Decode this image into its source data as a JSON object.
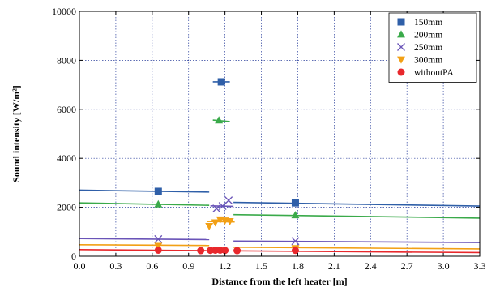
{
  "chart_data": {
    "type": "scatter",
    "xlabel": "Distance from the left heater [m]",
    "ylabel": "Sound intensity [W/m²]",
    "xlim": [
      0.0,
      3.3
    ],
    "ylim": [
      0,
      10000
    ],
    "xticks": [
      0.0,
      0.3,
      0.6,
      0.9,
      1.2,
      1.5,
      1.8,
      2.1,
      2.4,
      2.7,
      3.0,
      3.3
    ],
    "xtick_labels": [
      "0.0",
      "0.3",
      "0.6",
      "0.9",
      "1.2",
      "1.5",
      "1.8",
      "2.1",
      "2.4",
      "2.7",
      "3.0",
      "3.3"
    ],
    "yticks": [
      0,
      2000,
      4000,
      6000,
      8000,
      10000
    ],
    "ytick_labels": [
      "0",
      "2000",
      "4000",
      "6000",
      "8000",
      "10000"
    ],
    "grid": true,
    "legend_position": "top-right",
    "series": [
      {
        "name": "150mm",
        "color": "#2f5fa8",
        "marker": "square",
        "points": [
          [
            0.65,
            2650
          ],
          [
            1.17,
            7120
          ],
          [
            1.78,
            2180
          ]
        ],
        "lines": [
          [
            [
              0.0,
              2700
            ],
            [
              1.07,
              2620
            ]
          ],
          [
            [
              1.1,
              7120
            ],
            [
              1.24,
              7120
            ]
          ],
          [
            [
              1.27,
              2200
            ],
            [
              3.3,
              2050
            ]
          ]
        ]
      },
      {
        "name": "200mm",
        "color": "#3aaa4a",
        "marker": "triangle-up",
        "points": [
          [
            0.65,
            2120
          ],
          [
            1.15,
            5550
          ],
          [
            1.78,
            1680
          ]
        ],
        "lines": [
          [
            [
              0.0,
              2180
            ],
            [
              1.07,
              2080
            ]
          ],
          [
            [
              1.1,
              5560
            ],
            [
              1.24,
              5500
            ]
          ],
          [
            [
              1.27,
              1700
            ],
            [
              3.3,
              1560
            ]
          ]
        ]
      },
      {
        "name": "250mm",
        "color": "#6a54b8",
        "marker": "x",
        "points": [
          [
            0.65,
            700
          ],
          [
            1.13,
            1950
          ],
          [
            1.18,
            2050
          ],
          [
            1.23,
            2280
          ],
          [
            1.78,
            620
          ]
        ],
        "lines": [
          [
            [
              0.0,
              720
            ],
            [
              1.07,
              680
            ]
          ],
          [
            [
              1.08,
              2060
            ],
            [
              1.27,
              2040
            ]
          ],
          [
            [
              1.27,
              620
            ],
            [
              3.3,
              560
            ]
          ]
        ]
      },
      {
        "name": "300mm",
        "color": "#f2a015",
        "marker": "triangle-down",
        "points": [
          [
            0.65,
            420
          ],
          [
            1.07,
            1230
          ],
          [
            1.12,
            1380
          ],
          [
            1.16,
            1500
          ],
          [
            1.2,
            1460
          ],
          [
            1.24,
            1430
          ],
          [
            1.78,
            330
          ]
        ],
        "lines": [
          [
            [
              0.0,
              470
            ],
            [
              1.07,
              440
            ]
          ],
          [
            [
              1.05,
              1420
            ],
            [
              1.28,
              1400
            ]
          ],
          [
            [
              1.27,
              370
            ],
            [
              3.3,
              300
            ]
          ]
        ]
      },
      {
        "name": "withoutPA",
        "color": "#e8282c",
        "marker": "circle",
        "points": [
          [
            0.65,
            250
          ],
          [
            1.0,
            230
          ],
          [
            1.08,
            240
          ],
          [
            1.12,
            250
          ],
          [
            1.16,
            250
          ],
          [
            1.2,
            240
          ],
          [
            1.3,
            230
          ],
          [
            1.78,
            240
          ]
        ],
        "lines": [
          [
            [
              0.0,
              270
            ],
            [
              1.07,
              230
            ]
          ],
          [
            [
              1.27,
              220
            ],
            [
              3.3,
              150
            ]
          ]
        ]
      }
    ]
  }
}
